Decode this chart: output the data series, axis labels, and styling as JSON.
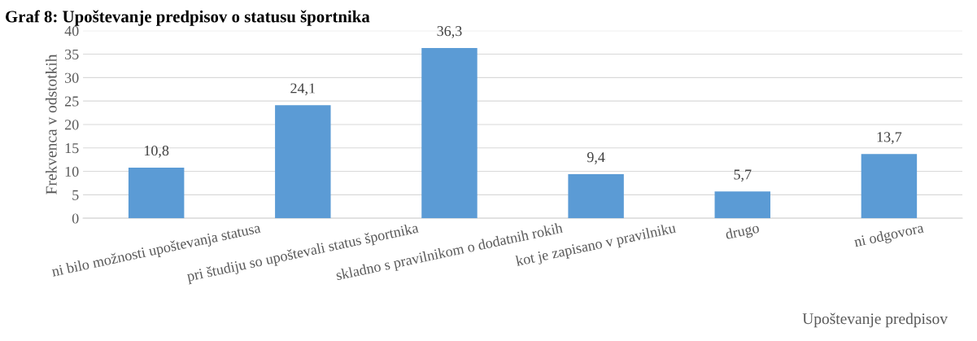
{
  "chart_data": {
    "type": "bar",
    "title": "Graf 8: Upoštevanje predpisov o statusu športnika",
    "xlabel": "Upoštevanje predpisov",
    "ylabel": "Frekvenca v odstotkih",
    "categories": [
      "ni bilo možnosti upoštevanja statusa",
      "pri študiju so upoštevali status športnika",
      "skladno s pravilnikom o dodatnih rokih",
      "kot je zapisano v pravilniku",
      "drugo",
      "ni odgovora"
    ],
    "values": [
      10.8,
      24.1,
      36.3,
      9.4,
      5.7,
      13.7
    ],
    "value_labels": [
      "10,8",
      "24,1",
      "36,3",
      "9,4",
      "5,7",
      "13,7"
    ],
    "color": "#5b9bd5",
    "ylim": [
      0,
      40
    ],
    "yticks": [
      0,
      5,
      10,
      15,
      20,
      25,
      30,
      35,
      40
    ],
    "grid": "y",
    "legend": false
  }
}
